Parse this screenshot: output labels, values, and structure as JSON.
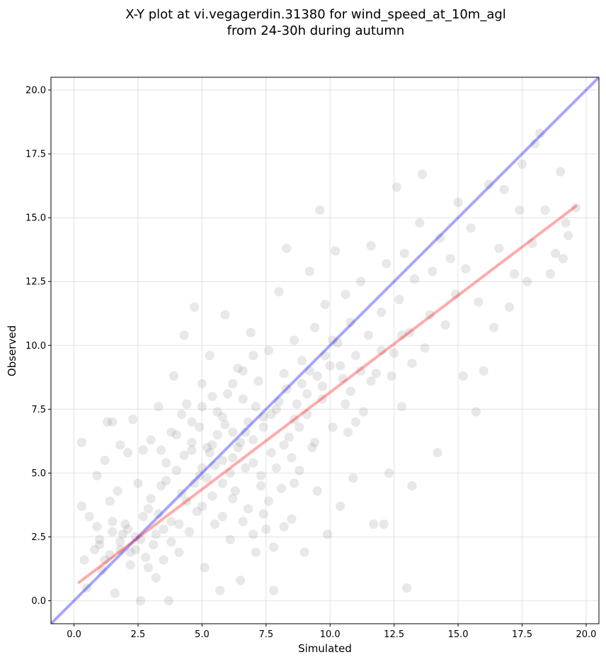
{
  "chart_data": {
    "type": "scatter",
    "title_line1": "X-Y plot at vi.vegagerdin.31380 for wind_speed_at_10m_agl",
    "title_line2": "from 24-30h during autumn",
    "xlabel": "Simulated",
    "ylabel": "Observed",
    "xlim": [
      -0.9,
      20.5
    ],
    "ylim": [
      -0.9,
      20.5
    ],
    "xticks": [
      0.0,
      2.5,
      5.0,
      7.5,
      10.0,
      12.5,
      15.0,
      17.5,
      20.0
    ],
    "yticks": [
      0.0,
      2.5,
      5.0,
      7.5,
      10.0,
      12.5,
      15.0,
      17.5,
      20.0
    ],
    "xtick_labels": [
      "0.0",
      "2.5",
      "5.0",
      "7.5",
      "10.0",
      "12.5",
      "15.0",
      "17.5",
      "20.0"
    ],
    "ytick_labels": [
      "0.0",
      "2.5",
      "5.0",
      "7.5",
      "10.0",
      "12.5",
      "15.0",
      "17.5",
      "20.0"
    ],
    "grid": true,
    "lines": [
      {
        "role": "identity",
        "color": "#0000ff",
        "opacity": 0.35,
        "x": [
          -0.9,
          20.5
        ],
        "y": [
          -0.9,
          20.5
        ]
      },
      {
        "role": "fit",
        "color": "#ff0000",
        "opacity": 0.33,
        "x": [
          0.2,
          19.6
        ],
        "y": [
          0.72,
          15.45
        ]
      }
    ],
    "point_color": "#808080",
    "point_opacity": 0.18,
    "points": [
      [
        0.3,
        6.2
      ],
      [
        0.3,
        3.7
      ],
      [
        0.5,
        0.5
      ],
      [
        0.4,
        1.6
      ],
      [
        0.6,
        3.3
      ],
      [
        0.8,
        2.0
      ],
      [
        0.9,
        4.9
      ],
      [
        1.0,
        2.4
      ],
      [
        1.1,
        1.2
      ],
      [
        1.2,
        5.5
      ],
      [
        1.3,
        7.0
      ],
      [
        1.4,
        3.9
      ],
      [
        1.5,
        7.0
      ],
      [
        1.5,
        2.7
      ],
      [
        1.6,
        0.3
      ],
      [
        1.7,
        4.3
      ],
      [
        1.8,
        6.1
      ],
      [
        1.8,
        2.0
      ],
      [
        2.0,
        3.0
      ],
      [
        2.1,
        5.8
      ],
      [
        2.2,
        1.4
      ],
      [
        2.3,
        7.1
      ],
      [
        2.4,
        2.5
      ],
      [
        2.5,
        4.6
      ],
      [
        2.6,
        0.0
      ],
      [
        2.7,
        5.9
      ],
      [
        2.8,
        1.7
      ],
      [
        2.9,
        3.6
      ],
      [
        3.0,
        6.3
      ],
      [
        3.1,
        2.2
      ],
      [
        3.2,
        0.9
      ],
      [
        3.3,
        7.6
      ],
      [
        3.4,
        4.5
      ],
      [
        3.5,
        2.8
      ],
      [
        3.6,
        5.4
      ],
      [
        3.7,
        0.0
      ],
      [
        3.8,
        3.1
      ],
      [
        3.9,
        8.8
      ],
      [
        4.0,
        6.5
      ],
      [
        4.1,
        1.9
      ],
      [
        4.2,
        4.2
      ],
      [
        4.3,
        10.4
      ],
      [
        4.4,
        7.7
      ],
      [
        4.5,
        2.7
      ],
      [
        4.6,
        5.9
      ],
      [
        4.7,
        11.5
      ],
      [
        4.8,
        3.5
      ],
      [
        4.9,
        6.8
      ],
      [
        5.0,
        8.5
      ],
      [
        5.1,
        1.3
      ],
      [
        5.2,
        4.8
      ],
      [
        5.3,
        9.6
      ],
      [
        5.4,
        6.1
      ],
      [
        5.5,
        3.0
      ],
      [
        5.6,
        7.4
      ],
      [
        5.7,
        0.4
      ],
      [
        5.8,
        5.5
      ],
      [
        5.9,
        11.2
      ],
      [
        6.0,
        8.1
      ],
      [
        6.1,
        2.4
      ],
      [
        6.2,
        6.6
      ],
      [
        6.3,
        4.3
      ],
      [
        6.4,
        9.1
      ],
      [
        6.5,
        0.8
      ],
      [
        6.6,
        7.9
      ],
      [
        6.7,
        5.2
      ],
      [
        6.8,
        3.6
      ],
      [
        6.9,
        10.5
      ],
      [
        7.0,
        6.3
      ],
      [
        7.1,
        1.9
      ],
      [
        7.2,
        8.6
      ],
      [
        7.3,
        4.9
      ],
      [
        7.4,
        7.2
      ],
      [
        7.5,
        2.8
      ],
      [
        7.6,
        9.8
      ],
      [
        7.7,
        5.8
      ],
      [
        7.8,
        0.4
      ],
      [
        7.9,
        7.5
      ],
      [
        8.0,
        12.1
      ],
      [
        8.1,
        4.4
      ],
      [
        8.2,
        8.9
      ],
      [
        8.3,
        13.8
      ],
      [
        8.4,
        6.4
      ],
      [
        8.5,
        3.2
      ],
      [
        8.6,
        10.2
      ],
      [
        8.7,
        7.7
      ],
      [
        8.8,
        5.1
      ],
      [
        8.9,
        9.4
      ],
      [
        9.0,
        1.9
      ],
      [
        9.1,
        8.1
      ],
      [
        9.2,
        12.9
      ],
      [
        9.3,
        6.0
      ],
      [
        9.4,
        10.7
      ],
      [
        9.5,
        4.3
      ],
      [
        9.6,
        15.3
      ],
      [
        9.7,
        8.4
      ],
      [
        9.8,
        11.6
      ],
      [
        9.9,
        2.6
      ],
      [
        10.0,
        9.2
      ],
      [
        10.1,
        6.8
      ],
      [
        10.2,
        13.7
      ],
      [
        10.3,
        10.1
      ],
      [
        10.4,
        3.7
      ],
      [
        10.5,
        8.7
      ],
      [
        10.6,
        12.0
      ],
      [
        10.7,
        6.6
      ],
      [
        10.8,
        10.9
      ],
      [
        10.9,
        4.8
      ],
      [
        11.0,
        9.6
      ],
      [
        11.2,
        12.5
      ],
      [
        11.3,
        7.4
      ],
      [
        11.5,
        10.4
      ],
      [
        11.6,
        13.9
      ],
      [
        11.7,
        3.0
      ],
      [
        11.8,
        8.9
      ],
      [
        12.0,
        11.3
      ],
      [
        12.1,
        3.0
      ],
      [
        12.2,
        13.2
      ],
      [
        12.3,
        5.0
      ],
      [
        12.5,
        9.7
      ],
      [
        12.6,
        16.2
      ],
      [
        12.7,
        11.8
      ],
      [
        12.8,
        7.6
      ],
      [
        12.9,
        13.6
      ],
      [
        13.0,
        0.5
      ],
      [
        13.1,
        10.5
      ],
      [
        13.2,
        4.5
      ],
      [
        13.3,
        12.6
      ],
      [
        13.5,
        14.8
      ],
      [
        13.6,
        16.7
      ],
      [
        13.7,
        9.9
      ],
      [
        13.9,
        11.2
      ],
      [
        14.0,
        12.9
      ],
      [
        14.2,
        5.8
      ],
      [
        14.3,
        14.2
      ],
      [
        14.5,
        10.8
      ],
      [
        14.7,
        13.4
      ],
      [
        14.9,
        12.0
      ],
      [
        15.0,
        15.6
      ],
      [
        15.2,
        8.8
      ],
      [
        15.3,
        13.0
      ],
      [
        15.5,
        14.6
      ],
      [
        15.7,
        7.4
      ],
      [
        15.8,
        11.7
      ],
      [
        16.0,
        9.0
      ],
      [
        16.2,
        16.3
      ],
      [
        16.4,
        10.7
      ],
      [
        16.6,
        13.8
      ],
      [
        16.8,
        16.1
      ],
      [
        17.0,
        11.5
      ],
      [
        17.2,
        12.8
      ],
      [
        17.4,
        15.3
      ],
      [
        17.5,
        17.1
      ],
      [
        17.7,
        12.5
      ],
      [
        17.9,
        14.0
      ],
      [
        18.0,
        17.9
      ],
      [
        18.2,
        18.3
      ],
      [
        18.4,
        15.3
      ],
      [
        18.6,
        12.8
      ],
      [
        18.8,
        13.6
      ],
      [
        19.0,
        16.8
      ],
      [
        19.1,
        13.4
      ],
      [
        19.2,
        14.8
      ],
      [
        19.3,
        14.3
      ],
      [
        19.6,
        15.4
      ],
      [
        1.0,
        2.2
      ],
      [
        1.4,
        1.8
      ],
      [
        1.9,
        2.6
      ],
      [
        2.2,
        1.9
      ],
      [
        2.6,
        2.4
      ],
      [
        2.9,
        1.3
      ],
      [
        3.2,
        2.6
      ],
      [
        3.5,
        1.6
      ],
      [
        3.8,
        2.3
      ],
      [
        4.1,
        3.0
      ],
      [
        4.4,
        3.9
      ],
      [
        4.7,
        4.6
      ],
      [
        5.0,
        5.2
      ],
      [
        5.3,
        5.8
      ],
      [
        5.6,
        6.5
      ],
      [
        5.9,
        6.9
      ],
      [
        6.2,
        5.6
      ],
      [
        6.5,
        6.2
      ],
      [
        6.8,
        7.0
      ],
      [
        7.1,
        7.6
      ],
      [
        7.4,
        6.8
      ],
      [
        7.7,
        7.3
      ],
      [
        8.0,
        7.8
      ],
      [
        8.3,
        8.3
      ],
      [
        8.6,
        7.1
      ],
      [
        8.9,
        8.5
      ],
      [
        9.2,
        9.0
      ],
      [
        9.5,
        8.8
      ],
      [
        9.8,
        9.6
      ],
      [
        10.1,
        10.2
      ],
      [
        4.0,
        5.1
      ],
      [
        4.3,
        5.7
      ],
      [
        4.6,
        6.2
      ],
      [
        4.9,
        4.9
      ],
      [
        5.2,
        6.0
      ],
      [
        5.5,
        5.3
      ],
      [
        5.8,
        4.6
      ],
      [
        6.1,
        5.0
      ],
      [
        6.4,
        6.0
      ],
      [
        6.7,
        6.6
      ],
      [
        3.0,
        4.0
      ],
      [
        3.3,
        3.4
      ],
      [
        3.6,
        4.7
      ],
      [
        2.7,
        3.3
      ],
      [
        2.4,
        2.0
      ],
      [
        2.1,
        2.8
      ],
      [
        1.8,
        2.3
      ],
      [
        1.5,
        3.1
      ],
      [
        1.2,
        1.6
      ],
      [
        0.9,
        2.9
      ],
      [
        7.0,
        5.4
      ],
      [
        7.3,
        4.5
      ],
      [
        7.6,
        3.9
      ],
      [
        7.9,
        5.2
      ],
      [
        8.2,
        6.1
      ],
      [
        8.5,
        5.6
      ],
      [
        8.8,
        6.8
      ],
      [
        9.1,
        7.3
      ],
      [
        9.4,
        6.2
      ],
      [
        9.7,
        7.9
      ],
      [
        5.0,
        3.7
      ],
      [
        5.4,
        4.1
      ],
      [
        5.8,
        3.3
      ],
      [
        6.2,
        4.0
      ],
      [
        6.6,
        3.1
      ],
      [
        7.0,
        2.6
      ],
      [
        7.4,
        3.4
      ],
      [
        7.8,
        2.1
      ],
      [
        8.2,
        2.9
      ],
      [
        8.6,
        4.6
      ],
      [
        3.4,
        5.9
      ],
      [
        3.8,
        6.6
      ],
      [
        4.2,
        7.3
      ],
      [
        4.6,
        7.0
      ],
      [
        5.0,
        7.6
      ],
      [
        5.4,
        8.0
      ],
      [
        5.8,
        7.2
      ],
      [
        6.2,
        8.5
      ],
      [
        6.6,
        9.0
      ],
      [
        7.0,
        9.6
      ],
      [
        10.4,
        9.2
      ],
      [
        10.8,
        8.2
      ],
      [
        11.2,
        9.0
      ],
      [
        11.6,
        8.6
      ],
      [
        12.0,
        9.8
      ],
      [
        12.4,
        8.8
      ],
      [
        12.8,
        10.4
      ],
      [
        13.2,
        9.3
      ],
      [
        10.6,
        7.7
      ],
      [
        11.0,
        7.0
      ]
    ]
  }
}
